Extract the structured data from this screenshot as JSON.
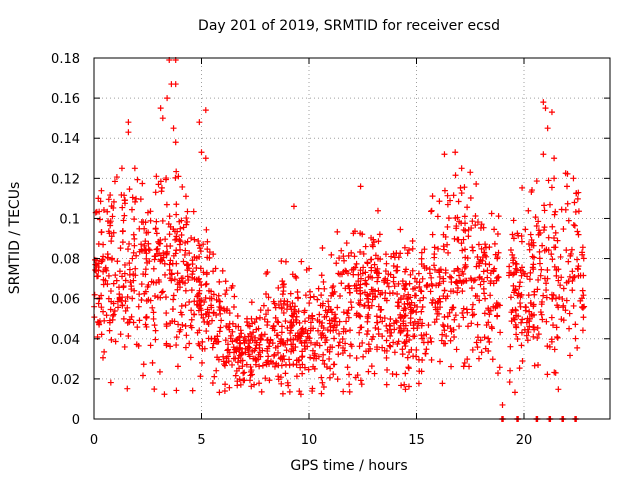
{
  "chart_data": {
    "type": "scatter",
    "title": "Day 201 of 2019, SRMTID for receiver ecsd",
    "xlabel": "GPS time / hours",
    "ylabel": "SRMTID / TECUs",
    "xlim": [
      0,
      24
    ],
    "ylim": [
      0,
      0.18
    ],
    "xticks": [
      0,
      5,
      10,
      15,
      20
    ],
    "xtick_labels": [
      "0",
      "5",
      "10",
      "15",
      "20"
    ],
    "yticks": [
      0,
      0.02,
      0.04,
      0.06,
      0.08,
      0.1,
      0.12,
      0.14,
      0.16,
      0.18
    ],
    "ytick_labels": [
      "0",
      "0.02",
      "0.04",
      "0.06",
      "0.08",
      "0.1",
      "0.12",
      "0.14",
      "0.16",
      "0.18"
    ],
    "grid": true,
    "marker": "+",
    "color": "#ff0000",
    "series": [
      {
        "name": "SRMTID",
        "trend": [
          [
            0.0,
            0.068
          ],
          [
            1.0,
            0.072
          ],
          [
            2.0,
            0.075
          ],
          [
            3.0,
            0.076
          ],
          [
            3.8,
            0.08
          ],
          [
            5.0,
            0.058
          ],
          [
            6.0,
            0.044
          ],
          [
            7.0,
            0.03
          ],
          [
            8.0,
            0.04
          ],
          [
            9.0,
            0.045
          ],
          [
            10.0,
            0.042
          ],
          [
            11.0,
            0.05
          ],
          [
            12.0,
            0.06
          ],
          [
            13.0,
            0.062
          ],
          [
            14.0,
            0.055
          ],
          [
            15.0,
            0.052
          ],
          [
            16.0,
            0.068
          ],
          [
            17.0,
            0.07
          ],
          [
            18.0,
            0.066
          ],
          [
            19.0,
            0.06
          ],
          [
            20.0,
            0.065
          ],
          [
            21.0,
            0.075
          ],
          [
            22.0,
            0.075
          ],
          [
            22.8,
            0.07
          ]
        ],
        "peaks": [
          [
            3.5,
            0.179
          ],
          [
            3.6,
            0.167
          ],
          [
            3.8,
            0.179
          ],
          [
            3.8,
            0.167
          ],
          [
            3.4,
            0.16
          ],
          [
            3.7,
            0.145
          ],
          [
            3.8,
            0.138
          ],
          [
            3.1,
            0.155
          ],
          [
            3.2,
            0.15
          ],
          [
            1.6,
            0.148
          ],
          [
            1.6,
            0.143
          ],
          [
            4.9,
            0.148
          ],
          [
            5.2,
            0.154
          ],
          [
            5.0,
            0.133
          ],
          [
            5.2,
            0.13
          ],
          [
            20.9,
            0.158
          ],
          [
            21.0,
            0.155
          ],
          [
            21.3,
            0.153
          ],
          [
            21.1,
            0.145
          ],
          [
            20.9,
            0.132
          ],
          [
            21.4,
            0.13
          ],
          [
            21.4,
            0.12
          ],
          [
            16.3,
            0.132
          ],
          [
            16.8,
            0.133
          ],
          [
            17.1,
            0.125
          ],
          [
            17.5,
            0.123
          ],
          [
            12.4,
            0.116
          ],
          [
            9.3,
            0.106
          ],
          [
            22.0,
            0.116
          ],
          [
            22.3,
            0.12
          ],
          [
            2.9,
            0.121
          ],
          [
            3.0,
            0.117
          ],
          [
            1.3,
            0.125
          ],
          [
            0.2,
            0.11
          ],
          [
            1.9,
            0.125
          ]
        ],
        "zeros_x": [
          19.0,
          19.7,
          20.6,
          21.2,
          21.8,
          22.4
        ],
        "zero_outlier": [
          19.0,
          0.007
        ]
      }
    ]
  }
}
